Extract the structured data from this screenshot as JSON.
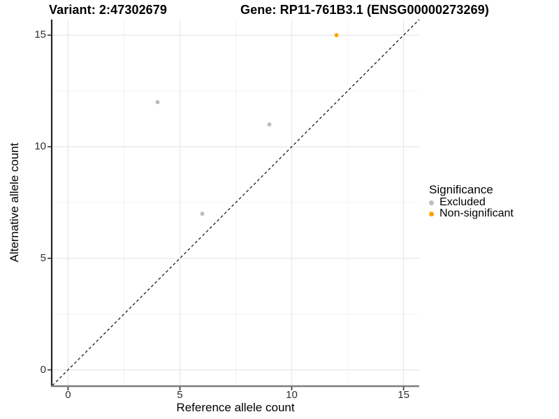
{
  "header": {
    "variant_title": "Variant: 2:47302679",
    "gene_title": "Gene: RP11-761B3.1 (ENSG00000273269)"
  },
  "chart_data": {
    "type": "scatter",
    "xlabel": "Reference allele count",
    "ylabel": "Alternative allele count",
    "xlim": [
      -0.7,
      15.7
    ],
    "ylim": [
      -0.7,
      15.7
    ],
    "x_ticks": [
      0,
      5,
      10,
      15
    ],
    "y_ticks": [
      0,
      5,
      10,
      15
    ],
    "minor_ticks": [
      2.5,
      7.5,
      12.5
    ],
    "grid": "major+minor",
    "background": "#ffffff",
    "major_grid_color": "#e7e7e7",
    "minor_grid_color": "#f3f3f3",
    "identity_line": {
      "style": "dashed",
      "from": [
        -0.7,
        -0.7
      ],
      "to": [
        15.7,
        15.7
      ],
      "color": "#1a1a1a"
    },
    "series": [
      {
        "name": "Excluded",
        "color": "#BEBEBE",
        "points": [
          [
            4,
            12
          ],
          [
            9,
            11
          ],
          [
            6,
            7
          ]
        ]
      },
      {
        "name": "Non-significant",
        "color": "#FFA500",
        "points": [
          [
            12,
            15
          ]
        ]
      }
    ],
    "legend": {
      "title": "Significance",
      "position": "right"
    }
  }
}
